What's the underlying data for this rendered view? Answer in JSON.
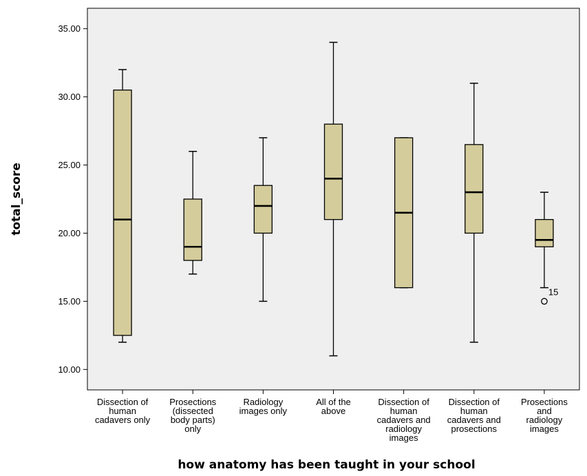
{
  "chart_data": {
    "type": "boxplot",
    "ylabel": "total_score",
    "xlabel": "how anatomy has been taught in your school",
    "ylim": [
      8.5,
      36.5
    ],
    "yticks": [
      "10.00",
      "15.00",
      "20.00",
      "25.00",
      "30.00",
      "35.00"
    ],
    "ytick_values": [
      10,
      15,
      20,
      25,
      30,
      35
    ],
    "grid": false,
    "categories": [
      {
        "label_lines": [
          "Dissection of",
          "human",
          "cadavers only"
        ]
      },
      {
        "label_lines": [
          "Prosections",
          "(dissected",
          "body parts)",
          "only"
        ]
      },
      {
        "label_lines": [
          "Radiology",
          "images only"
        ]
      },
      {
        "label_lines": [
          "All of the",
          "above"
        ]
      },
      {
        "label_lines": [
          "Dissection of",
          "human",
          "cadavers and",
          "radiology",
          "images"
        ]
      },
      {
        "label_lines": [
          "Dissection of",
          "human",
          "cadavers and",
          "prosections"
        ]
      },
      {
        "label_lines": [
          "Prosections",
          "and",
          "radiology",
          "images"
        ]
      }
    ],
    "boxes": [
      {
        "whisker_low": 12,
        "q1": 12.5,
        "median": 21,
        "q3": 30.5,
        "whisker_high": 32,
        "outliers": []
      },
      {
        "whisker_low": 17,
        "q1": 18,
        "median": 19,
        "q3": 22.5,
        "whisker_high": 26,
        "outliers": []
      },
      {
        "whisker_low": 15,
        "q1": 20,
        "median": 22,
        "q3": 23.5,
        "whisker_high": 27,
        "outliers": []
      },
      {
        "whisker_low": 11,
        "q1": 21,
        "median": 24,
        "q3": 28,
        "whisker_high": 34,
        "outliers": []
      },
      {
        "whisker_low": 16,
        "q1": 16,
        "median": 21.5,
        "q3": 27,
        "whisker_high": 27,
        "outliers": []
      },
      {
        "whisker_low": 12,
        "q1": 20,
        "median": 23,
        "q3": 26.5,
        "whisker_high": 31,
        "outliers": []
      },
      {
        "whisker_low": 16,
        "q1": 19,
        "median": 19.5,
        "q3": 21,
        "whisker_high": 23,
        "outliers": [
          {
            "value": 15,
            "label": "15"
          }
        ]
      }
    ],
    "colors": {
      "plot_background": "#efefef",
      "box_fill": "#d4cc9a",
      "stroke": "#000000"
    }
  }
}
